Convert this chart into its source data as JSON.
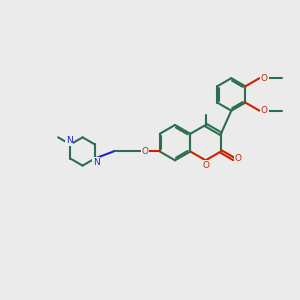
{
  "background_color": "#ebebeb",
  "bond_color": "#2d6e4e",
  "O_color": "#cc2200",
  "N_color": "#2222cc",
  "lw": 1.5,
  "dbo": 0.06,
  "fs": 6.5,
  "figsize": [
    3.0,
    3.0
  ],
  "dpi": 100,
  "xlim": [
    0,
    10
  ],
  "ylim": [
    0,
    10
  ]
}
